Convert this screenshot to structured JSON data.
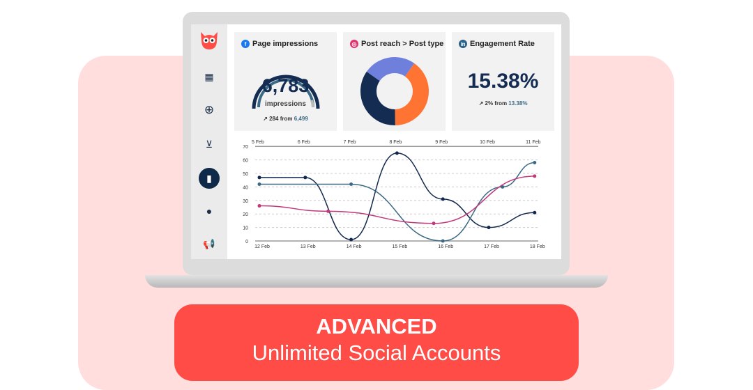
{
  "sidebar": {
    "items": [
      "owl-logo",
      "calendar-icon",
      "plus-circle-icon",
      "inbox-icon",
      "analytics-icon",
      "lightbulb-icon",
      "megaphone-icon"
    ],
    "active": "analytics-icon"
  },
  "cards": [
    {
      "title": "Page impressions",
      "network": "facebook",
      "value": "6,783",
      "unit": "impressions",
      "change": "284 from",
      "previous": "6,499"
    },
    {
      "title": "Post reach > Post type",
      "network": "instagram",
      "slices": [
        {
          "value": 40,
          "color": "#ff7433"
        },
        {
          "value": 35,
          "color": "#142c52"
        },
        {
          "value": 25,
          "color": "#6e7fdc"
        }
      ]
    },
    {
      "title": "Engagement Rate",
      "network": "linkedin",
      "value": "15.38%",
      "change": "2% from",
      "previous": "13.38%"
    }
  ],
  "chart_data": {
    "type": "line",
    "top_axis": [
      "5 Feb",
      "6 Feb",
      "7 Feb",
      "8 Feb",
      "9 Feb",
      "10 Feb",
      "11 Feb"
    ],
    "categories": [
      "12 Feb",
      "13 Feb",
      "14 Feb",
      "15 Feb",
      "16 Feb",
      "17 Feb",
      "18 Feb"
    ],
    "y_ticks": [
      "0",
      "10",
      "20",
      "30",
      "40",
      "50",
      "60",
      "70"
    ],
    "ylim": [
      0,
      70
    ],
    "grid": true,
    "series": [
      {
        "color": "#12294d",
        "x": [
          0,
          1,
          2,
          3,
          4,
          5,
          6
        ],
        "values": [
          47,
          47,
          1,
          65,
          31,
          10,
          21
        ]
      },
      {
        "color": "#3b6a86",
        "x": [
          0,
          2,
          4,
          5.3,
          6
        ],
        "values": [
          42,
          42,
          0,
          40,
          58
        ]
      },
      {
        "color": "#c0397a",
        "x": [
          0,
          1.5,
          3.8,
          6
        ],
        "values": [
          26,
          22,
          13,
          48
        ]
      }
    ]
  },
  "banner": {
    "title": "ADVANCED",
    "subtitle": "Unlimited Social Accounts"
  }
}
